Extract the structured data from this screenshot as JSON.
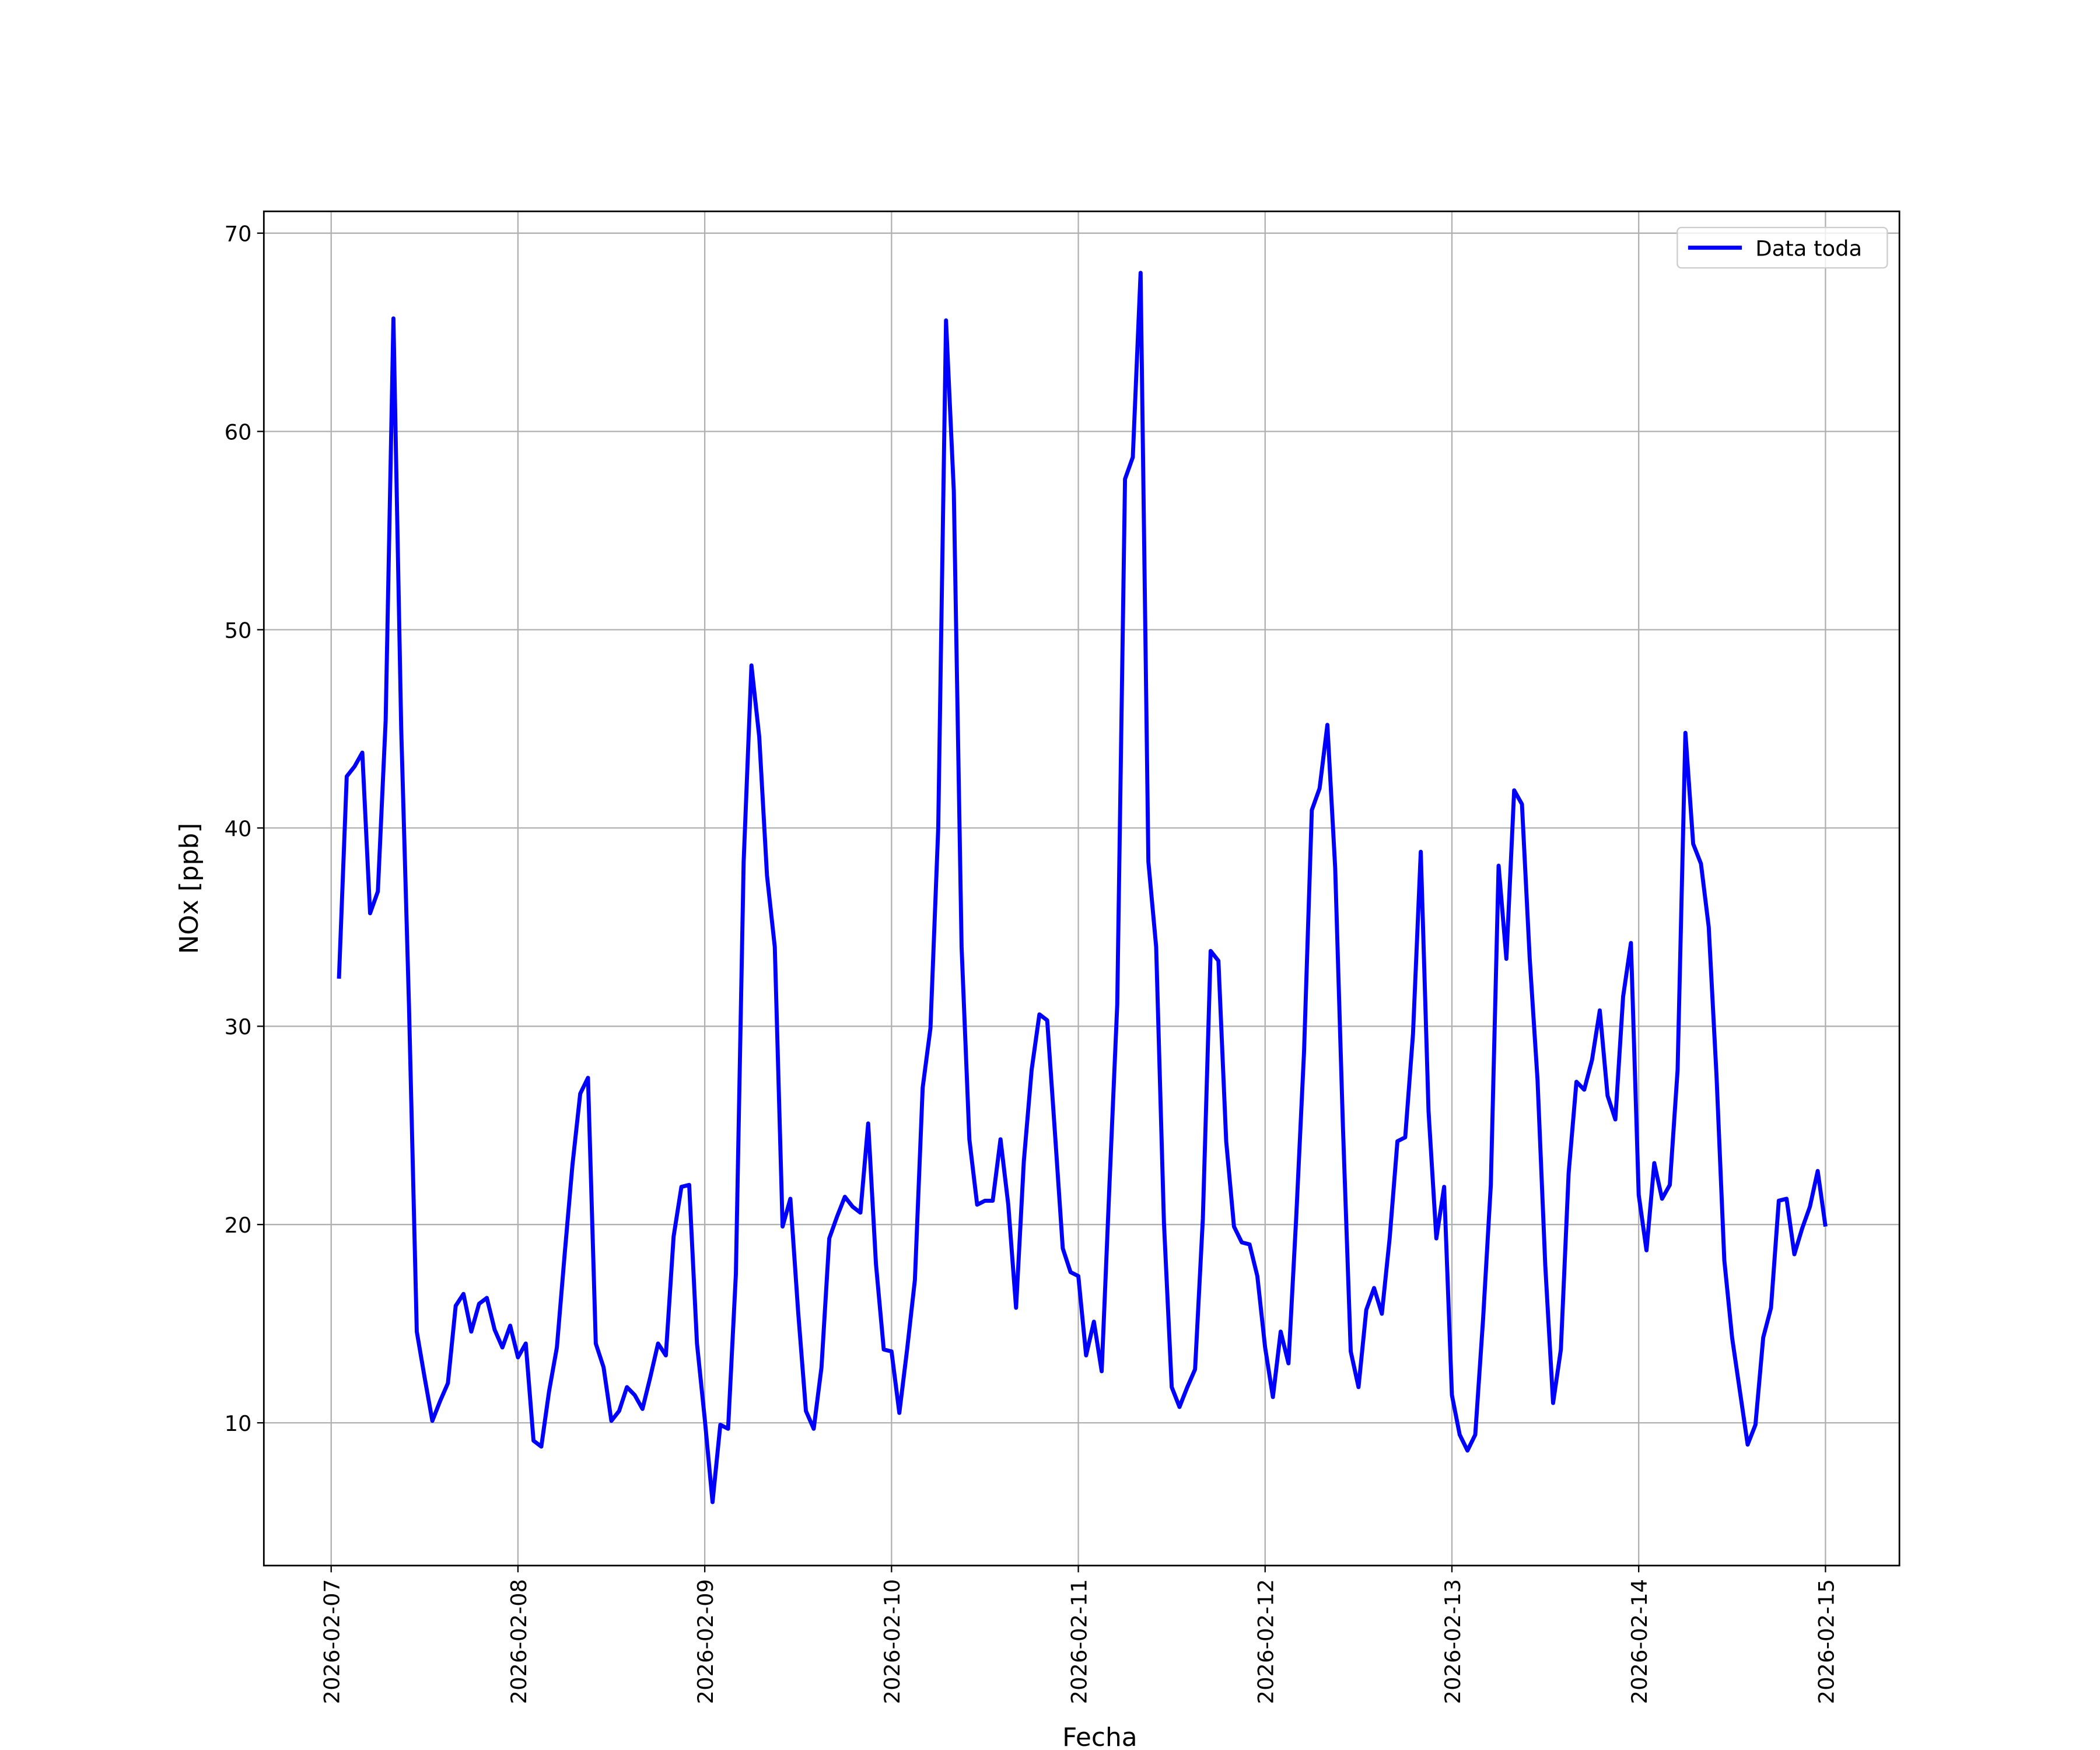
{
  "chart_data": {
    "type": "line",
    "x_label": "Fecha",
    "y_label": "NOx [ppb]",
    "x": [
      "2026-02-07 01:00",
      "2026-02-07 02:00",
      "2026-02-07 03:00",
      "2026-02-07 04:00",
      "2026-02-07 05:00",
      "2026-02-07 06:00",
      "2026-02-07 07:00",
      "2026-02-07 08:00",
      "2026-02-07 09:00",
      "2026-02-07 10:00",
      "2026-02-07 11:00",
      "2026-02-07 12:00",
      "2026-02-07 13:00",
      "2026-02-07 14:00",
      "2026-02-07 15:00",
      "2026-02-07 16:00",
      "2026-02-07 17:00",
      "2026-02-07 18:00",
      "2026-02-07 19:00",
      "2026-02-07 20:00",
      "2026-02-07 21:00",
      "2026-02-07 22:00",
      "2026-02-07 23:00",
      "2026-02-08 00:00",
      "2026-02-08 01:00",
      "2026-02-08 02:00",
      "2026-02-08 03:00",
      "2026-02-08 04:00",
      "2026-02-08 05:00",
      "2026-02-08 06:00",
      "2026-02-08 07:00",
      "2026-02-08 08:00",
      "2026-02-08 09:00",
      "2026-02-08 10:00",
      "2026-02-08 11:00",
      "2026-02-08 12:00",
      "2026-02-08 13:00",
      "2026-02-08 14:00",
      "2026-02-08 15:00",
      "2026-02-08 16:00",
      "2026-02-08 17:00",
      "2026-02-08 18:00",
      "2026-02-08 19:00",
      "2026-02-08 20:00",
      "2026-02-08 21:00",
      "2026-02-08 22:00",
      "2026-02-08 23:00",
      "2026-02-09 00:00",
      "2026-02-09 01:00",
      "2026-02-09 02:00",
      "2026-02-09 03:00",
      "2026-02-09 04:00",
      "2026-02-09 05:00",
      "2026-02-09 06:00",
      "2026-02-09 07:00",
      "2026-02-09 08:00",
      "2026-02-09 09:00",
      "2026-02-09 10:00",
      "2026-02-09 11:00",
      "2026-02-09 12:00",
      "2026-02-09 13:00",
      "2026-02-09 14:00",
      "2026-02-09 15:00",
      "2026-02-09 16:00",
      "2026-02-09 17:00",
      "2026-02-09 18:00",
      "2026-02-09 19:00",
      "2026-02-09 20:00",
      "2026-02-09 21:00",
      "2026-02-09 22:00",
      "2026-02-09 23:00",
      "2026-02-10 00:00",
      "2026-02-10 01:00",
      "2026-02-10 02:00",
      "2026-02-10 03:00",
      "2026-02-10 04:00",
      "2026-02-10 05:00",
      "2026-02-10 06:00",
      "2026-02-10 07:00",
      "2026-02-10 08:00",
      "2026-02-10 09:00",
      "2026-02-10 10:00",
      "2026-02-10 11:00",
      "2026-02-10 12:00",
      "2026-02-10 13:00",
      "2026-02-10 14:00",
      "2026-02-10 15:00",
      "2026-02-10 16:00",
      "2026-02-10 17:00",
      "2026-02-10 18:00",
      "2026-02-10 19:00",
      "2026-02-10 20:00",
      "2026-02-10 21:00",
      "2026-02-10 22:00",
      "2026-02-10 23:00",
      "2026-02-11 00:00",
      "2026-02-11 01:00",
      "2026-02-11 02:00",
      "2026-02-11 03:00",
      "2026-02-11 04:00",
      "2026-02-11 05:00",
      "2026-02-11 06:00",
      "2026-02-11 07:00",
      "2026-02-11 08:00",
      "2026-02-11 09:00",
      "2026-02-11 10:00",
      "2026-02-11 11:00",
      "2026-02-11 12:00",
      "2026-02-11 13:00",
      "2026-02-11 14:00",
      "2026-02-11 15:00",
      "2026-02-11 16:00",
      "2026-02-11 17:00",
      "2026-02-11 18:00",
      "2026-02-11 19:00",
      "2026-02-11 20:00",
      "2026-02-11 21:00",
      "2026-02-11 22:00",
      "2026-02-11 23:00",
      "2026-02-12 00:00",
      "2026-02-12 01:00",
      "2026-02-12 02:00",
      "2026-02-12 03:00",
      "2026-02-12 04:00",
      "2026-02-12 05:00",
      "2026-02-12 06:00",
      "2026-02-12 07:00",
      "2026-02-12 08:00",
      "2026-02-12 09:00",
      "2026-02-12 10:00",
      "2026-02-12 11:00",
      "2026-02-12 12:00",
      "2026-02-12 13:00",
      "2026-02-12 14:00",
      "2026-02-12 15:00",
      "2026-02-12 16:00",
      "2026-02-12 17:00",
      "2026-02-12 18:00",
      "2026-02-12 19:00",
      "2026-02-12 20:00",
      "2026-02-12 21:00",
      "2026-02-12 22:00",
      "2026-02-12 23:00",
      "2026-02-13 00:00",
      "2026-02-13 01:00",
      "2026-02-13 02:00",
      "2026-02-13 03:00",
      "2026-02-13 04:00",
      "2026-02-13 05:00",
      "2026-02-13 06:00",
      "2026-02-13 07:00",
      "2026-02-13 08:00",
      "2026-02-13 09:00",
      "2026-02-13 10:00",
      "2026-02-13 11:00",
      "2026-02-13 12:00",
      "2026-02-13 13:00",
      "2026-02-13 14:00",
      "2026-02-13 15:00",
      "2026-02-13 16:00",
      "2026-02-13 17:00",
      "2026-02-13 18:00",
      "2026-02-13 19:00",
      "2026-02-13 20:00",
      "2026-02-13 21:00",
      "2026-02-13 22:00",
      "2026-02-13 23:00",
      "2026-02-14 00:00",
      "2026-02-14 01:00",
      "2026-02-14 02:00",
      "2026-02-14 03:00",
      "2026-02-14 04:00",
      "2026-02-14 05:00",
      "2026-02-14 06:00",
      "2026-02-14 07:00",
      "2026-02-14 08:00",
      "2026-02-14 09:00",
      "2026-02-14 10:00",
      "2026-02-14 11:00",
      "2026-02-14 12:00",
      "2026-02-14 13:00",
      "2026-02-14 14:00",
      "2026-02-14 15:00",
      "2026-02-14 16:00",
      "2026-02-14 17:00",
      "2026-02-14 18:00",
      "2026-02-14 19:00",
      "2026-02-14 20:00",
      "2026-02-14 21:00",
      "2026-02-14 22:00",
      "2026-02-14 23:00",
      "2026-02-15 00:00"
    ],
    "series": [
      {
        "name": "Data toda",
        "color": "#0000ff",
        "values": [
          32.4,
          42.6,
          43.1,
          43.8,
          35.7,
          36.8,
          45.4,
          65.7,
          45,
          31,
          14.6,
          12.3,
          10.1,
          11.1,
          12.0,
          15.9,
          16.5,
          14.6,
          16.0,
          16.3,
          14.7,
          13.8,
          14.9,
          13.3,
          14.0,
          9.1,
          8.8,
          11.6,
          13.8,
          18.5,
          23.0,
          26.6,
          27.4,
          14.0,
          12.8,
          10.1,
          10.6,
          11.8,
          11.4,
          10.7,
          12.3,
          14.0,
          13.4,
          19.4,
          21.9,
          22.0,
          14.0,
          10.2,
          6.0,
          9.9,
          9.7,
          17.5,
          38.3,
          48.2,
          44.6,
          37.6,
          34.0,
          19.9,
          21.3,
          15.6,
          10.6,
          9.7,
          12.8,
          19.3,
          20.4,
          21.4,
          20.9,
          20.6,
          25.1,
          18.0,
          13.7,
          13.6,
          10.5,
          13.7,
          17.2,
          26.9,
          29.9,
          40.0,
          65.6,
          57.0,
          34.0,
          24.3,
          21.0,
          21.2,
          21.2,
          24.3,
          21.0,
          15.8,
          23.2,
          27.8,
          30.6,
          30.3,
          24.6,
          18.8,
          17.6,
          17.4,
          13.4,
          15.1,
          12.6,
          22.0,
          31.1,
          57.6,
          58.7,
          68.0,
          38.3,
          34.0,
          20.1,
          11.8,
          10.8,
          11.8,
          12.7,
          20.3,
          33.8,
          33.3,
          24.2,
          19.9,
          19.1,
          19.0,
          17.4,
          13.8,
          11.3,
          14.6,
          13.0,
          20.4,
          28.7,
          40.9,
          42.0,
          45.2,
          38.0,
          24.9,
          13.6,
          11.8,
          15.7,
          16.8,
          15.5,
          19.3,
          24.2,
          24.4,
          29.6,
          38.8,
          25.7,
          19.3,
          21.9,
          11.4,
          9.4,
          8.6,
          9.4,
          15.2,
          22.0,
          38.1,
          33.4,
          41.9,
          41.2,
          33.4,
          27.3,
          17.9,
          11.0,
          13.7,
          22.6,
          27.2,
          26.8,
          28.3,
          30.8,
          26.5,
          25.3,
          31.5,
          34.2,
          21.5,
          18.7,
          23.1,
          21.3,
          22.0,
          27.8,
          44.8,
          39.2,
          38.2,
          35.0,
          27.5,
          18.2,
          14.3,
          11.6,
          8.9,
          9.9,
          14.3,
          15.8,
          21.2,
          21.3,
          18.5,
          19.8,
          20.9,
          22.7,
          19.9
        ]
      }
    ],
    "xlim": [
      "2026-02-06 15:21",
      "2026-02-15 09:30"
    ],
    "xticks": [
      "2026-02-07",
      "2026-02-08",
      "2026-02-09",
      "2026-02-10",
      "2026-02-11",
      "2026-02-12",
      "2026-02-13",
      "2026-02-14",
      "2026-02-15"
    ],
    "ylim": [
      2.8,
      71.1
    ],
    "yticks": [
      10,
      20,
      30,
      40,
      50,
      60,
      70
    ],
    "grid": true,
    "legend": "upper right"
  }
}
